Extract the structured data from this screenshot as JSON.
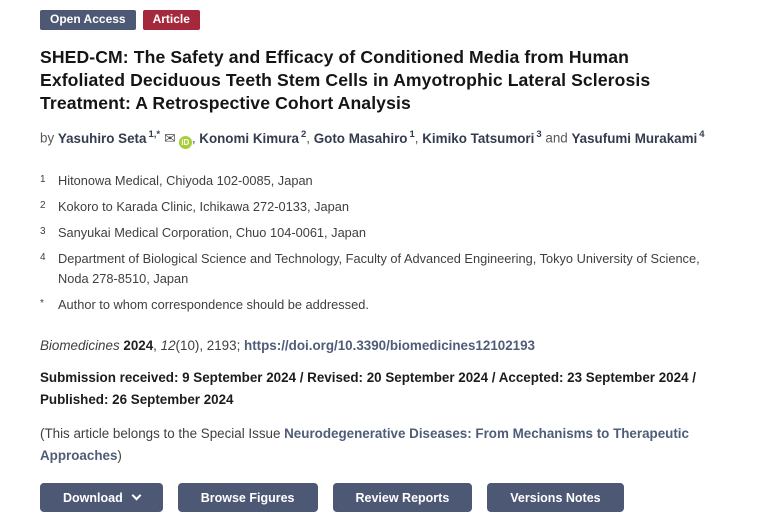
{
  "badges": {
    "open_access": "Open Access",
    "article": "Article"
  },
  "title": "SHED-CM: The Safety and Efficacy of Conditioned Media from Human Exfoliated Deciduous Teeth Stem Cells in Amyotrophic Lateral Sclerosis Treatment: A Retrospective Cohort Analysis",
  "authors": {
    "prefix": "by",
    "list": [
      {
        "name": "Yasuhiro Seta",
        "sup": "1,*",
        "sep": ","
      },
      {
        "name": "Konomi Kimura",
        "sup": "2",
        "sep": ","
      },
      {
        "name": "Goto Masahiro",
        "sup": "1",
        "sep": ","
      },
      {
        "name": "Kimiko Tatsumori",
        "sup": "3",
        "sep": " and "
      },
      {
        "name": "Yasufumi Murakami",
        "sup": "4",
        "sep": ""
      }
    ],
    "icons": {
      "email": "✉",
      "orcid": "iD"
    }
  },
  "affiliations": [
    {
      "marker": "1",
      "text": "Hitonowa Medical, Chiyoda 102-0085, Japan"
    },
    {
      "marker": "2",
      "text": "Kokoro to Karada Clinic, Ichikawa 272-0133, Japan"
    },
    {
      "marker": "3",
      "text": "Sanyukai Medical Corporation, Chuo 104-0061, Japan"
    },
    {
      "marker": "4",
      "text": "Department of Biological Science and Technology, Faculty of Advanced Engineering, Tokyo University of Science, Noda 278-8510, Japan"
    },
    {
      "marker": "*",
      "text": "Author to whom correspondence should be addressed."
    }
  ],
  "journal": {
    "name": "Biomedicines",
    "year": "2024",
    "sep1": ", ",
    "volume": "12",
    "issue_pages": "(10), 2193; ",
    "doi": "https://doi.org/10.3390/biomedicines12102193"
  },
  "dates": {
    "text": "Submission received: 9 September 2024 / Revised: 20 September 2024 / Accepted: 23 September 2024 / Published: 26 September 2024"
  },
  "special_issue": {
    "prefix": "(This article belongs to the Special Issue ",
    "link": "Neurodegenerative Diseases: From Mechanisms to Therapeutic Approaches",
    "suffix": ")"
  },
  "buttons": {
    "download": "Download",
    "browse_figures": "Browse Figures",
    "review_reports": "Review Reports",
    "versions_notes": "Versions Notes"
  },
  "colors": {
    "badge_open_access_bg": "#4d5875",
    "badge_article_bg": "#a6283c",
    "button_bg": "#4d5874",
    "link": "#4f5d78",
    "orcid_green": "#a6ce39",
    "author_name": "#333c4e"
  }
}
